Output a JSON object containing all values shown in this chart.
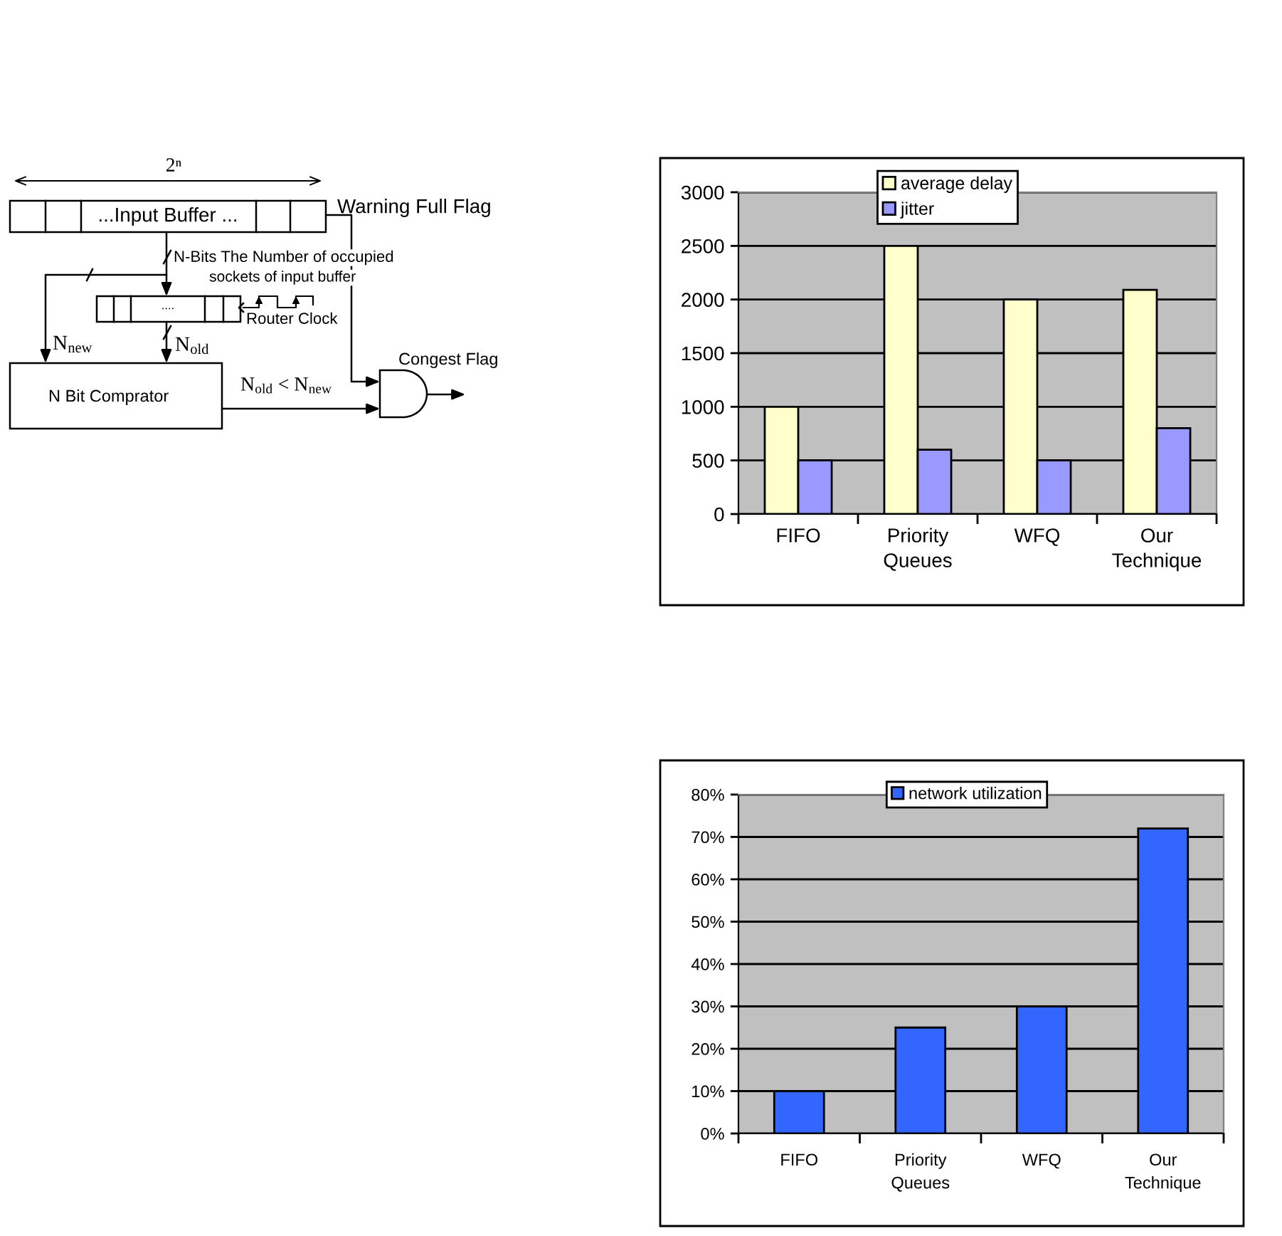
{
  "chart_data": [
    {
      "type": "other",
      "annotations": [
        "2ⁿ",
        "...Input Buffer ...",
        "Warning Full Flag",
        "N-Bits The Number of occupied",
        "sockets of input buffer",
        "....",
        "Router Clock",
        "N$_{new}$",
        "N$_{old}$",
        "N Bit Comprator",
        "N$_{old}$ < N$_{new}$",
        "Congest Flag"
      ]
    },
    {
      "type": "bar",
      "categories": [
        "FIFO",
        "Priority Queues",
        "WFQ",
        "Our Technique"
      ],
      "series": [
        {
          "name": "average delay",
          "color": "#ffffcc",
          "values": [
            1000,
            2500,
            2000,
            2090
          ]
        },
        {
          "name": "jitter",
          "color": "#9999ff",
          "values": [
            500,
            600,
            500,
            800
          ]
        }
      ],
      "ylim": [
        0,
        3000
      ],
      "yticks": [
        0,
        500,
        1000,
        1500,
        2000,
        2500,
        3000
      ],
      "grid": "y",
      "legend": "top"
    },
    {
      "type": "bar",
      "categories": [
        "FIFO",
        "Priority Queues",
        "WFQ",
        "Our Technique"
      ],
      "series": [
        {
          "name": "network utilization",
          "color": "#3366ff",
          "values": [
            10,
            25,
            30,
            72
          ]
        }
      ],
      "ylim": [
        0,
        80
      ],
      "yticks": [
        {
          "value": 0,
          "label": "0%"
        },
        {
          "value": 10,
          "label": "10%"
        },
        {
          "value": 20,
          "label": "20%"
        },
        {
          "value": 30,
          "label": "30%"
        },
        {
          "value": 40,
          "label": "40%"
        },
        {
          "value": 50,
          "label": "50%"
        },
        {
          "value": 60,
          "label": "60%"
        },
        {
          "value": 70,
          "label": "70%"
        },
        {
          "value": 80,
          "label": "80%"
        }
      ],
      "grid": "y",
      "legend": "top"
    }
  ]
}
